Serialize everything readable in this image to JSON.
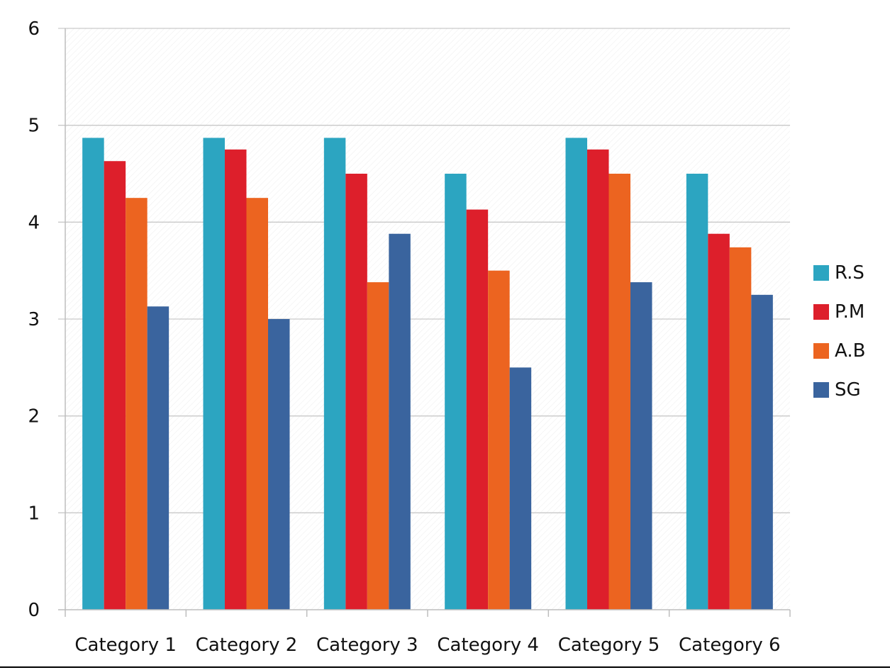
{
  "chart_data": {
    "type": "bar",
    "categories": [
      "Category 1",
      "Category 2",
      "Category 3",
      "Category 4",
      "Category 5",
      "Category 6"
    ],
    "series": [
      {
        "name": "R.S",
        "color": "#2ca5c1",
        "values": [
          4.87,
          4.87,
          4.87,
          4.5,
          4.87,
          4.5
        ]
      },
      {
        "name": "P.M",
        "color": "#dd1f2b",
        "values": [
          4.63,
          4.75,
          4.5,
          4.13,
          4.75,
          3.88
        ]
      },
      {
        "name": "A.B",
        "color": "#ec6420",
        "values": [
          4.25,
          4.25,
          3.38,
          3.5,
          4.5,
          3.74
        ]
      },
      {
        "name": "SG",
        "color": "#3a649e",
        "values": [
          3.13,
          3.0,
          3.88,
          2.5,
          3.38,
          3.25
        ]
      }
    ],
    "y_ticks": [
      "0",
      "1",
      "2",
      "3",
      "4",
      "5",
      "6"
    ],
    "ylim": [
      0,
      6
    ],
    "grid": true,
    "legend_position": "right"
  }
}
